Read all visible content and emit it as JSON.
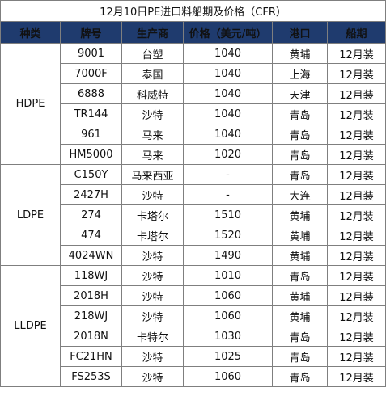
{
  "title": "12月10日PE进口料船期及价格（CFR）",
  "headers": [
    "种类",
    "牌号",
    "生产商",
    "价格（美元/吨）",
    "港口",
    "船期"
  ],
  "groups": [
    {
      "category": "HDPE",
      "rows": [
        {
          "grade": "9001",
          "producer": "台塑",
          "price": "1040",
          "port": "黄埔",
          "ship": "12月装"
        },
        {
          "grade": "7000F",
          "producer": "泰国",
          "price": "1040",
          "port": "上海",
          "ship": "12月装"
        },
        {
          "grade": "6888",
          "producer": "科威特",
          "price": "1040",
          "port": "天津",
          "ship": "12月装"
        },
        {
          "grade": "TR144",
          "producer": "沙特",
          "price": "1040",
          "port": "青岛",
          "ship": "12月装"
        },
        {
          "grade": "961",
          "producer": "马来",
          "price": "1040",
          "port": "青岛",
          "ship": "12月装"
        },
        {
          "grade": "HM5000",
          "producer": "马来",
          "price": "1020",
          "port": "青岛",
          "ship": "12月装"
        }
      ]
    },
    {
      "category": "LDPE",
      "rows": [
        {
          "grade": "C150Y",
          "producer": "马来西亚",
          "price": "-",
          "port": "青岛",
          "ship": "12月装"
        },
        {
          "grade": "2427H",
          "producer": "沙特",
          "price": "-",
          "port": "大连",
          "ship": "12月装"
        },
        {
          "grade": "274",
          "producer": "卡塔尔",
          "price": "1510",
          "port": "黄埔",
          "ship": "12月装"
        },
        {
          "grade": "474",
          "producer": "卡塔尔",
          "price": "1520",
          "port": "黄埔",
          "ship": "12月装"
        },
        {
          "grade": "4024WN",
          "producer": "沙特",
          "price": "1490",
          "port": "黄埔",
          "ship": "12月装"
        }
      ]
    },
    {
      "category": "LLDPE",
      "rows": [
        {
          "grade": "118WJ",
          "producer": "沙特",
          "price": "1010",
          "port": "青岛",
          "ship": "12月装"
        },
        {
          "grade": "2018H",
          "producer": "沙特",
          "price": "1060",
          "port": "黄埔",
          "ship": "12月装"
        },
        {
          "grade": "218WJ",
          "producer": "沙特",
          "price": "1060",
          "port": "黄埔",
          "ship": "12月装"
        },
        {
          "grade": "2018N",
          "producer": "卡特尔",
          "price": "1030",
          "port": "青岛",
          "ship": "12月装"
        },
        {
          "grade": "FC21HN",
          "producer": "沙特",
          "price": "1025",
          "port": "青岛",
          "ship": "12月装"
        },
        {
          "grade": "FS253S",
          "producer": "沙特",
          "price": "1060",
          "port": "青岛",
          "ship": "12月装"
        }
      ]
    }
  ],
  "colors": {
    "header_bg": "#1f3b6e",
    "header_text": "#ffffff",
    "border": "#7f7f7f"
  }
}
